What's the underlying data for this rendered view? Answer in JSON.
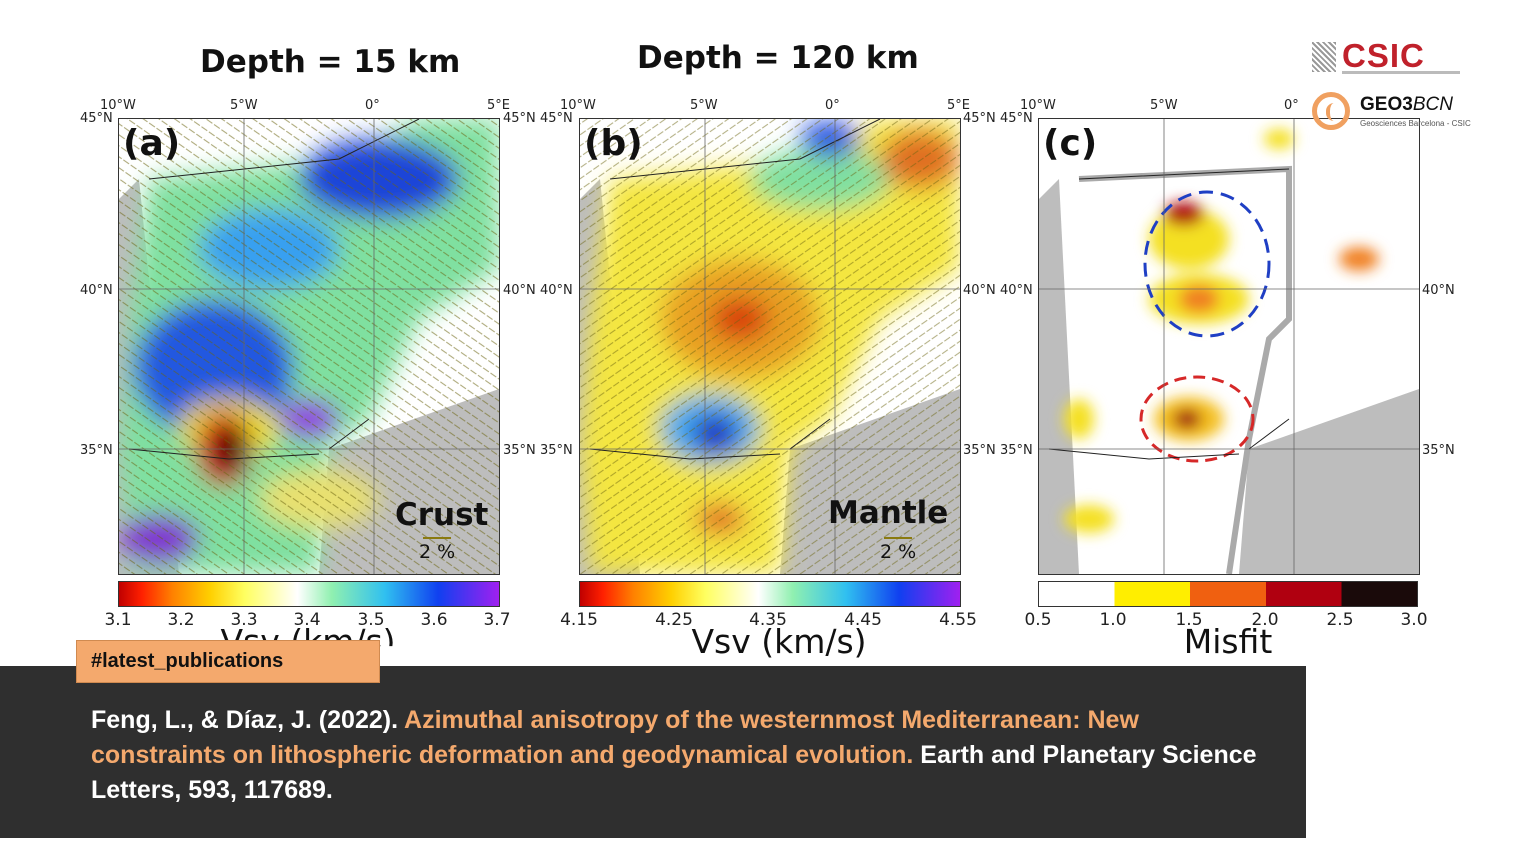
{
  "titles": {
    "left": "Depth = 15 km",
    "right": "Depth = 120 km"
  },
  "panels": [
    {
      "label": "(a)",
      "tag": "Crust",
      "scale": "2 %",
      "cb_ticks": [
        "3.1",
        "3.2",
        "3.3",
        "3.4",
        "3.5",
        "3.6",
        "3.7"
      ],
      "cb_title": "Vsv (km/s)",
      "lon_ticks": [
        "10°W",
        "5°W",
        "0°",
        "5°E"
      ],
      "lat_ticks": [
        "45°N",
        "40°N",
        "35°N"
      ]
    },
    {
      "label": "(b)",
      "tag": "Mantle",
      "scale": "2 %",
      "cb_ticks": [
        "4.15",
        "4.25",
        "4.35",
        "4.45",
        "4.55"
      ],
      "cb_title": "Vsv (km/s)",
      "lon_ticks": [
        "10°W",
        "5°W",
        "0°",
        "5°E"
      ],
      "lat_ticks": [
        "45°N",
        "40°N",
        "35°N"
      ]
    },
    {
      "label": "(c)",
      "tag": "",
      "scale": "",
      "cb_ticks": [
        "0.5",
        "1.0",
        "1.5",
        "2.0",
        "2.5",
        "3.0"
      ],
      "cb_title": "Misfit",
      "lon_ticks": [
        "10°W",
        "5°W",
        "0°"
      ],
      "lat_ticks": [
        "45°N",
        "40°N",
        "35°N"
      ]
    }
  ],
  "logos": {
    "csic": "CSIC",
    "geo_bold": "GEO3",
    "geo_italic": "BCN",
    "geo_sub": "Geosciences Barcelona - CSIC"
  },
  "hashtag": "#latest_publications",
  "citation": {
    "authors": "Feng, L., & Díaz, J. (2022). ",
    "title": "Azimuthal anisotropy of the westernmost Mediterranean: New constraints on lithospheric deformation and geodynamical evolution.",
    "journal": " Earth and Planetary Science Letters, 593, 117689."
  },
  "colors": {
    "accent": "#f4a96d",
    "banner": "#2f2f2f",
    "csic_red": "#c0212b",
    "circle_blue": "#1f3fc4",
    "circle_red": "#d62828"
  }
}
